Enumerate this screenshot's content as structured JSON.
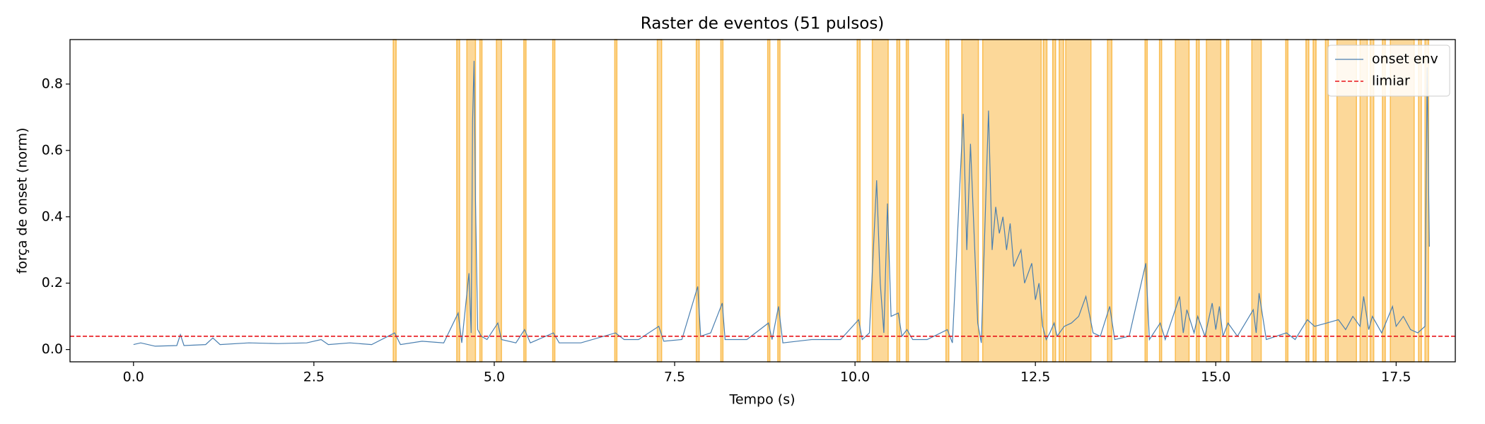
{
  "chart_data": {
    "type": "line",
    "title": "Raster de eventos (51 pulsos)",
    "x_label": "Tempo (s)",
    "y_label": "força de onset (norm)",
    "xlim": [
      -0.88,
      18.32
    ],
    "ylim": [
      -0.037,
      0.934
    ],
    "xticks": [
      {
        "value": 0,
        "label": "0.0"
      },
      2.5,
      {
        "value": 5,
        "label": "5.0"
      },
      7.5,
      {
        "value": 10,
        "label": "10.0"
      },
      12.5,
      {
        "value": 15,
        "label": "15.0"
      },
      17.5
    ],
    "yticks": [
      {
        "value": 0,
        "label": "0.0"
      },
      0.2,
      0.4,
      0.6,
      0.8
    ],
    "legend": "upper right",
    "series": [
      {
        "name": "onset env",
        "color": "#4a7fb0",
        "x": [
          0.0,
          0.1,
          0.3,
          0.6,
          0.65,
          0.7,
          1.0,
          1.1,
          1.2,
          1.6,
          2.0,
          2.4,
          2.6,
          2.7,
          3.0,
          3.3,
          3.62,
          3.7,
          4.0,
          4.3,
          4.5,
          4.55,
          4.65,
          4.68,
          4.7,
          4.72,
          4.74,
          4.77,
          4.82,
          4.9,
          5.05,
          5.1,
          5.3,
          5.42,
          5.5,
          5.82,
          5.9,
          6.2,
          6.68,
          6.8,
          7.0,
          7.28,
          7.35,
          7.6,
          7.82,
          7.86,
          8.0,
          8.16,
          8.2,
          8.5,
          8.8,
          8.85,
          8.94,
          9.0,
          9.4,
          9.8,
          10.05,
          10.1,
          10.2,
          10.3,
          10.35,
          10.4,
          10.45,
          10.5,
          10.6,
          10.65,
          10.72,
          10.8,
          11.0,
          11.28,
          11.35,
          11.5,
          11.55,
          11.6,
          11.7,
          11.75,
          11.85,
          11.9,
          11.95,
          12.0,
          12.05,
          12.1,
          12.15,
          12.2,
          12.3,
          12.35,
          12.45,
          12.5,
          12.55,
          12.6,
          12.65,
          12.7,
          12.76,
          12.8,
          12.9,
          13.0,
          13.1,
          13.2,
          13.3,
          13.4,
          13.53,
          13.6,
          13.8,
          14.03,
          14.08,
          14.23,
          14.3,
          14.5,
          14.55,
          14.6,
          14.7,
          14.75,
          14.85,
          14.95,
          15.0,
          15.05,
          15.1,
          15.17,
          15.3,
          15.52,
          15.56,
          15.6,
          15.7,
          15.98,
          16.1,
          16.27,
          16.37,
          16.54,
          16.7,
          16.8,
          16.9,
          17.0,
          17.05,
          17.12,
          17.17,
          17.3,
          17.45,
          17.5,
          17.6,
          17.7,
          17.8,
          17.9,
          17.93,
          17.96
        ],
        "values": [
          0.015,
          0.02,
          0.01,
          0.012,
          0.045,
          0.012,
          0.015,
          0.035,
          0.015,
          0.02,
          0.018,
          0.02,
          0.03,
          0.015,
          0.02,
          0.015,
          0.05,
          0.015,
          0.025,
          0.02,
          0.11,
          0.02,
          0.23,
          0.05,
          0.69,
          0.87,
          0.45,
          0.06,
          0.04,
          0.03,
          0.08,
          0.03,
          0.02,
          0.06,
          0.02,
          0.05,
          0.02,
          0.02,
          0.05,
          0.03,
          0.03,
          0.07,
          0.025,
          0.03,
          0.19,
          0.04,
          0.05,
          0.14,
          0.03,
          0.03,
          0.08,
          0.03,
          0.13,
          0.02,
          0.03,
          0.03,
          0.09,
          0.03,
          0.05,
          0.51,
          0.2,
          0.05,
          0.44,
          0.1,
          0.11,
          0.04,
          0.06,
          0.03,
          0.03,
          0.06,
          0.02,
          0.71,
          0.3,
          0.62,
          0.08,
          0.02,
          0.72,
          0.3,
          0.43,
          0.35,
          0.4,
          0.3,
          0.38,
          0.25,
          0.3,
          0.2,
          0.26,
          0.15,
          0.2,
          0.07,
          0.03,
          0.05,
          0.08,
          0.04,
          0.07,
          0.08,
          0.1,
          0.16,
          0.05,
          0.04,
          0.13,
          0.03,
          0.04,
          0.26,
          0.03,
          0.08,
          0.03,
          0.16,
          0.05,
          0.12,
          0.05,
          0.1,
          0.04,
          0.14,
          0.06,
          0.13,
          0.04,
          0.08,
          0.04,
          0.12,
          0.05,
          0.17,
          0.03,
          0.05,
          0.03,
          0.09,
          0.07,
          0.08,
          0.09,
          0.06,
          0.1,
          0.07,
          0.16,
          0.06,
          0.1,
          0.05,
          0.13,
          0.07,
          0.1,
          0.06,
          0.05,
          0.07,
          0.85,
          0.31
        ]
      }
    ],
    "threshold": {
      "name": "limiar",
      "value": 0.04,
      "color": "#e8141a"
    },
    "span_color": "#f9b233",
    "spans": [
      [
        3.6,
        3.64
      ],
      [
        4.48,
        4.52
      ],
      [
        4.62,
        4.74
      ],
      [
        4.8,
        4.83
      ],
      [
        5.03,
        5.1
      ],
      [
        5.41,
        5.44
      ],
      [
        5.81,
        5.84
      ],
      [
        6.67,
        6.7
      ],
      [
        7.26,
        7.32
      ],
      [
        7.8,
        7.84
      ],
      [
        8.14,
        8.17
      ],
      [
        8.79,
        8.82
      ],
      [
        8.93,
        8.96
      ],
      [
        10.03,
        10.07
      ],
      [
        10.24,
        10.46
      ],
      [
        10.58,
        10.62
      ],
      [
        10.71,
        10.74
      ],
      [
        11.26,
        11.3
      ],
      [
        11.48,
        11.71
      ],
      [
        11.77,
        12.58
      ],
      [
        12.61,
        12.66
      ],
      [
        12.74,
        12.78
      ],
      [
        12.83,
        12.89
      ],
      [
        12.92,
        13.27
      ],
      [
        13.5,
        13.56
      ],
      [
        14.02,
        14.05
      ],
      [
        14.22,
        14.25
      ],
      [
        14.44,
        14.63
      ],
      [
        14.73,
        14.77
      ],
      [
        14.87,
        15.07
      ],
      [
        15.15,
        15.18
      ],
      [
        15.5,
        15.63
      ],
      [
        15.97,
        16.0
      ],
      [
        16.25,
        16.29
      ],
      [
        16.35,
        16.39
      ],
      [
        16.52,
        16.56
      ],
      [
        16.68,
        16.95
      ],
      [
        17.0,
        17.1
      ],
      [
        17.14,
        17.19
      ],
      [
        17.31,
        17.35
      ],
      [
        17.42,
        17.75
      ],
      [
        17.81,
        17.85
      ],
      [
        17.9,
        17.95
      ]
    ]
  }
}
